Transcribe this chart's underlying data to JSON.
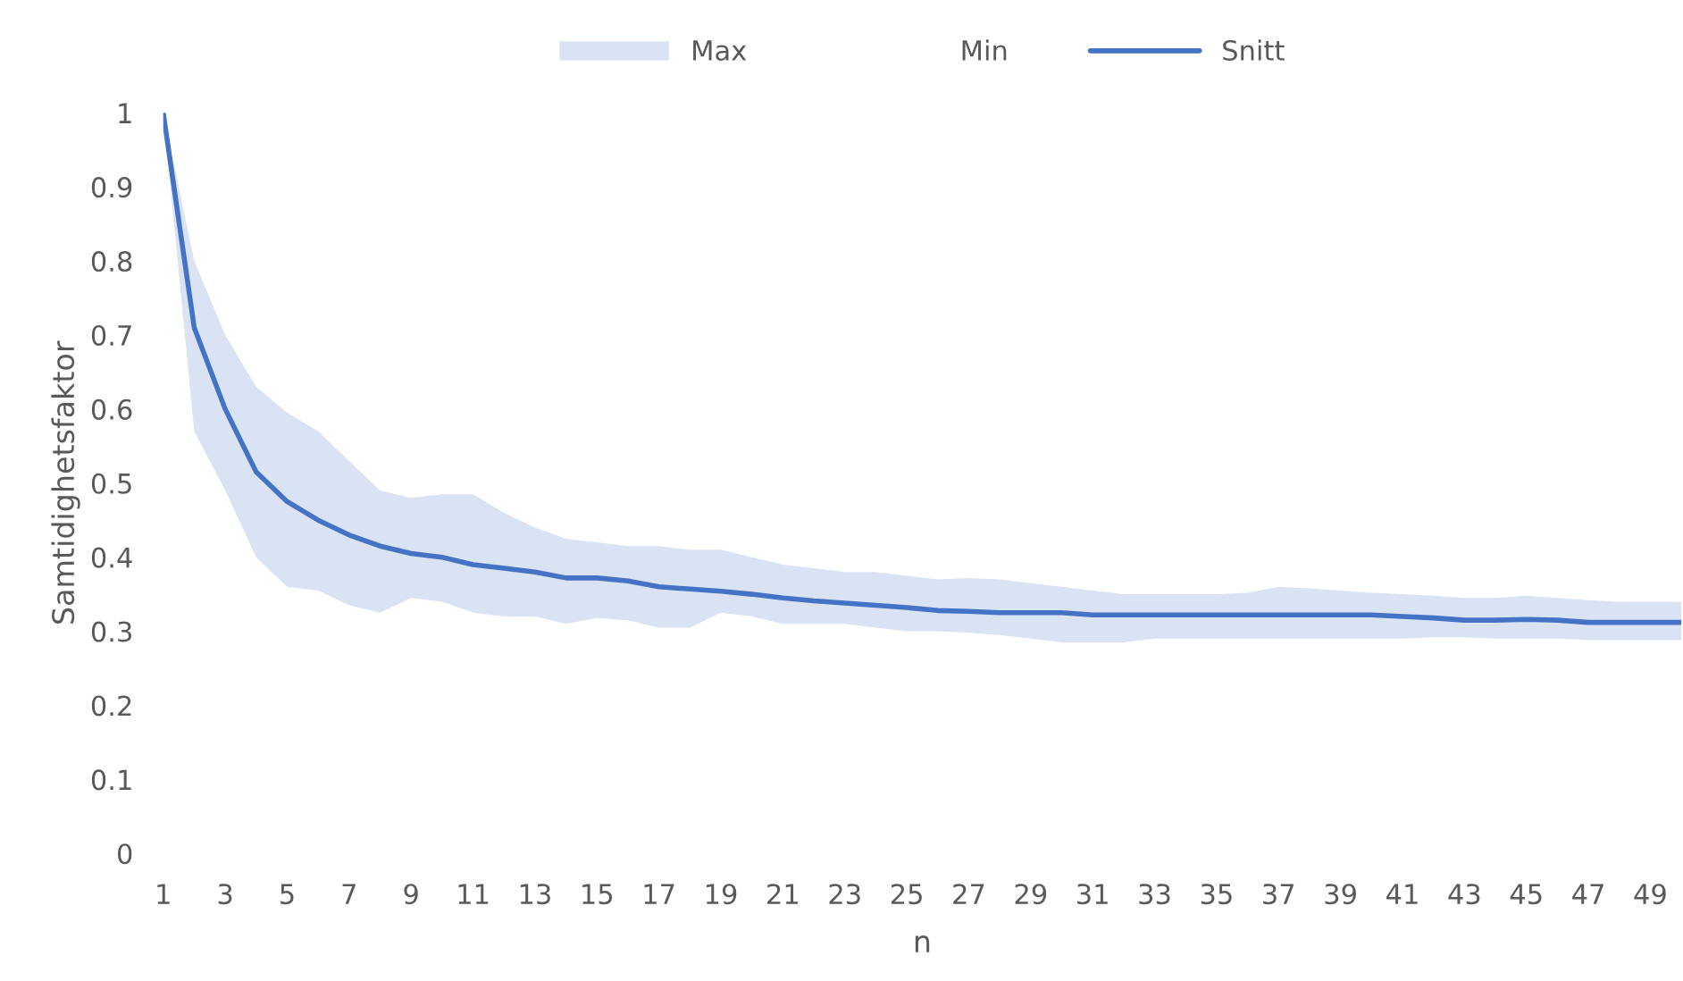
{
  "chart_data": {
    "type": "line",
    "xlabel": "n",
    "ylabel": "Samtidighetsfaktor",
    "annotations": [
      "Max",
      "Min"
    ],
    "categories": [
      "1",
      null,
      "3",
      null,
      "5",
      null,
      "7",
      null,
      "9",
      null,
      "11",
      null,
      "13",
      null,
      "15",
      null,
      "17",
      null,
      "19",
      null,
      "21",
      null,
      "23",
      null,
      "25",
      null,
      "27",
      null,
      "29",
      null,
      "31",
      null,
      "33",
      null,
      "35",
      null,
      "37",
      null,
      "39",
      null,
      "41",
      null,
      "43",
      null,
      "45",
      null,
      "47",
      null,
      "49",
      null
    ],
    "ylim": [
      0,
      1
    ],
    "yticks": [
      0,
      0.1,
      0.2,
      0.3,
      0.4,
      0.5,
      0.6,
      0.7,
      0.8,
      0.9,
      1
    ],
    "legend": "top",
    "series": [
      {
        "name": "Snitt",
        "color": "#4472c4",
        "values": [
          1,
          0.71,
          0.6,
          0.515,
          0.475,
          0.45,
          0.43,
          0.415,
          0.405,
          0.4,
          0.39,
          0.385,
          0.38,
          0.372,
          0.372,
          0.368,
          0.36,
          0.357,
          0.354,
          0.35,
          0.345,
          0.341,
          0.338,
          0.335,
          0.332,
          0.328,
          0.327,
          0.325,
          0.325,
          0.325,
          0.322,
          0.322,
          0.322,
          0.322,
          0.322,
          0.322,
          0.322,
          0.322,
          0.322,
          0.322,
          0.32,
          0.318,
          0.315,
          0.315,
          0.316,
          0.315,
          0.312,
          0.312,
          0.312,
          0.312
        ],
        "upper": [
          1,
          0.8,
          0.7,
          0.63,
          0.595,
          0.57,
          0.53,
          0.49,
          0.48,
          0.485,
          0.485,
          0.46,
          0.44,
          0.425,
          0.42,
          0.415,
          0.415,
          0.41,
          0.41,
          0.4,
          0.39,
          0.385,
          0.38,
          0.38,
          0.375,
          0.37,
          0.372,
          0.37,
          0.365,
          0.36,
          0.355,
          0.35,
          0.35,
          0.35,
          0.35,
          0.352,
          0.36,
          0.358,
          0.355,
          0.352,
          0.35,
          0.348,
          0.345,
          0.345,
          0.348,
          0.345,
          0.342,
          0.34,
          0.34,
          0.34
        ],
        "lower": [
          1,
          0.57,
          0.49,
          0.4,
          0.36,
          0.355,
          0.335,
          0.325,
          0.345,
          0.34,
          0.325,
          0.32,
          0.32,
          0.31,
          0.318,
          0.315,
          0.305,
          0.305,
          0.325,
          0.32,
          0.31,
          0.31,
          0.31,
          0.305,
          0.3,
          0.3,
          0.298,
          0.295,
          0.29,
          0.285,
          0.285,
          0.285,
          0.29,
          0.29,
          0.29,
          0.29,
          0.29,
          0.29,
          0.29,
          0.29,
          0.29,
          0.292,
          0.292,
          0.29,
          0.29,
          0.29,
          0.288,
          0.288,
          0.288,
          0.288
        ]
      }
    ]
  }
}
